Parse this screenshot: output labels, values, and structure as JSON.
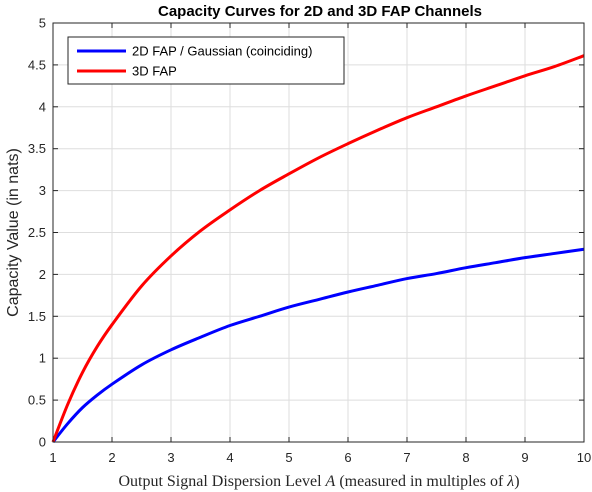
{
  "chart_data": {
    "type": "line",
    "title": "Capacity Curves for 2D and 3D FAP Channels",
    "xlabel": {
      "prefix": "Output Signal Dispersion Level ",
      "variable": "A",
      "middle": " (measured in multiples of ",
      "lambda": "λ",
      "suffix": ")"
    },
    "ylabel": "Capacity Value (in nats)",
    "xlim": [
      1,
      10
    ],
    "ylim": [
      0,
      5
    ],
    "xticks": [
      1,
      2,
      3,
      4,
      5,
      6,
      7,
      8,
      9,
      10
    ],
    "yticks": [
      0,
      0.5,
      1,
      1.5,
      2,
      2.5,
      3,
      3.5,
      4,
      4.5,
      5
    ],
    "ytick_labels": [
      "0",
      "0.5",
      "1",
      "1.5",
      "2",
      "2.5",
      "3",
      "3.5",
      "4",
      "4.5",
      "5"
    ],
    "grid": true,
    "legend_position": "top-left",
    "x": [
      1,
      1.25,
      1.5,
      1.75,
      2,
      2.5,
      3,
      3.5,
      4,
      4.5,
      5,
      5.5,
      6,
      6.5,
      7,
      7.5,
      8,
      8.5,
      9,
      9.5,
      10
    ],
    "series": [
      {
        "name": "2D FAP / Gaussian (coinciding)",
        "color": "#0000ff",
        "values": [
          0,
          0.22,
          0.41,
          0.56,
          0.69,
          0.92,
          1.1,
          1.25,
          1.39,
          1.5,
          1.61,
          1.7,
          1.79,
          1.87,
          1.95,
          2.01,
          2.08,
          2.14,
          2.2,
          2.25,
          2.3
        ]
      },
      {
        "name": "3D FAP",
        "color": "#ff0000",
        "values": [
          0,
          0.45,
          0.83,
          1.14,
          1.4,
          1.86,
          2.22,
          2.52,
          2.77,
          3.0,
          3.2,
          3.39,
          3.56,
          3.72,
          3.87,
          4.0,
          4.13,
          4.25,
          4.37,
          4.48,
          4.61
        ]
      }
    ]
  }
}
